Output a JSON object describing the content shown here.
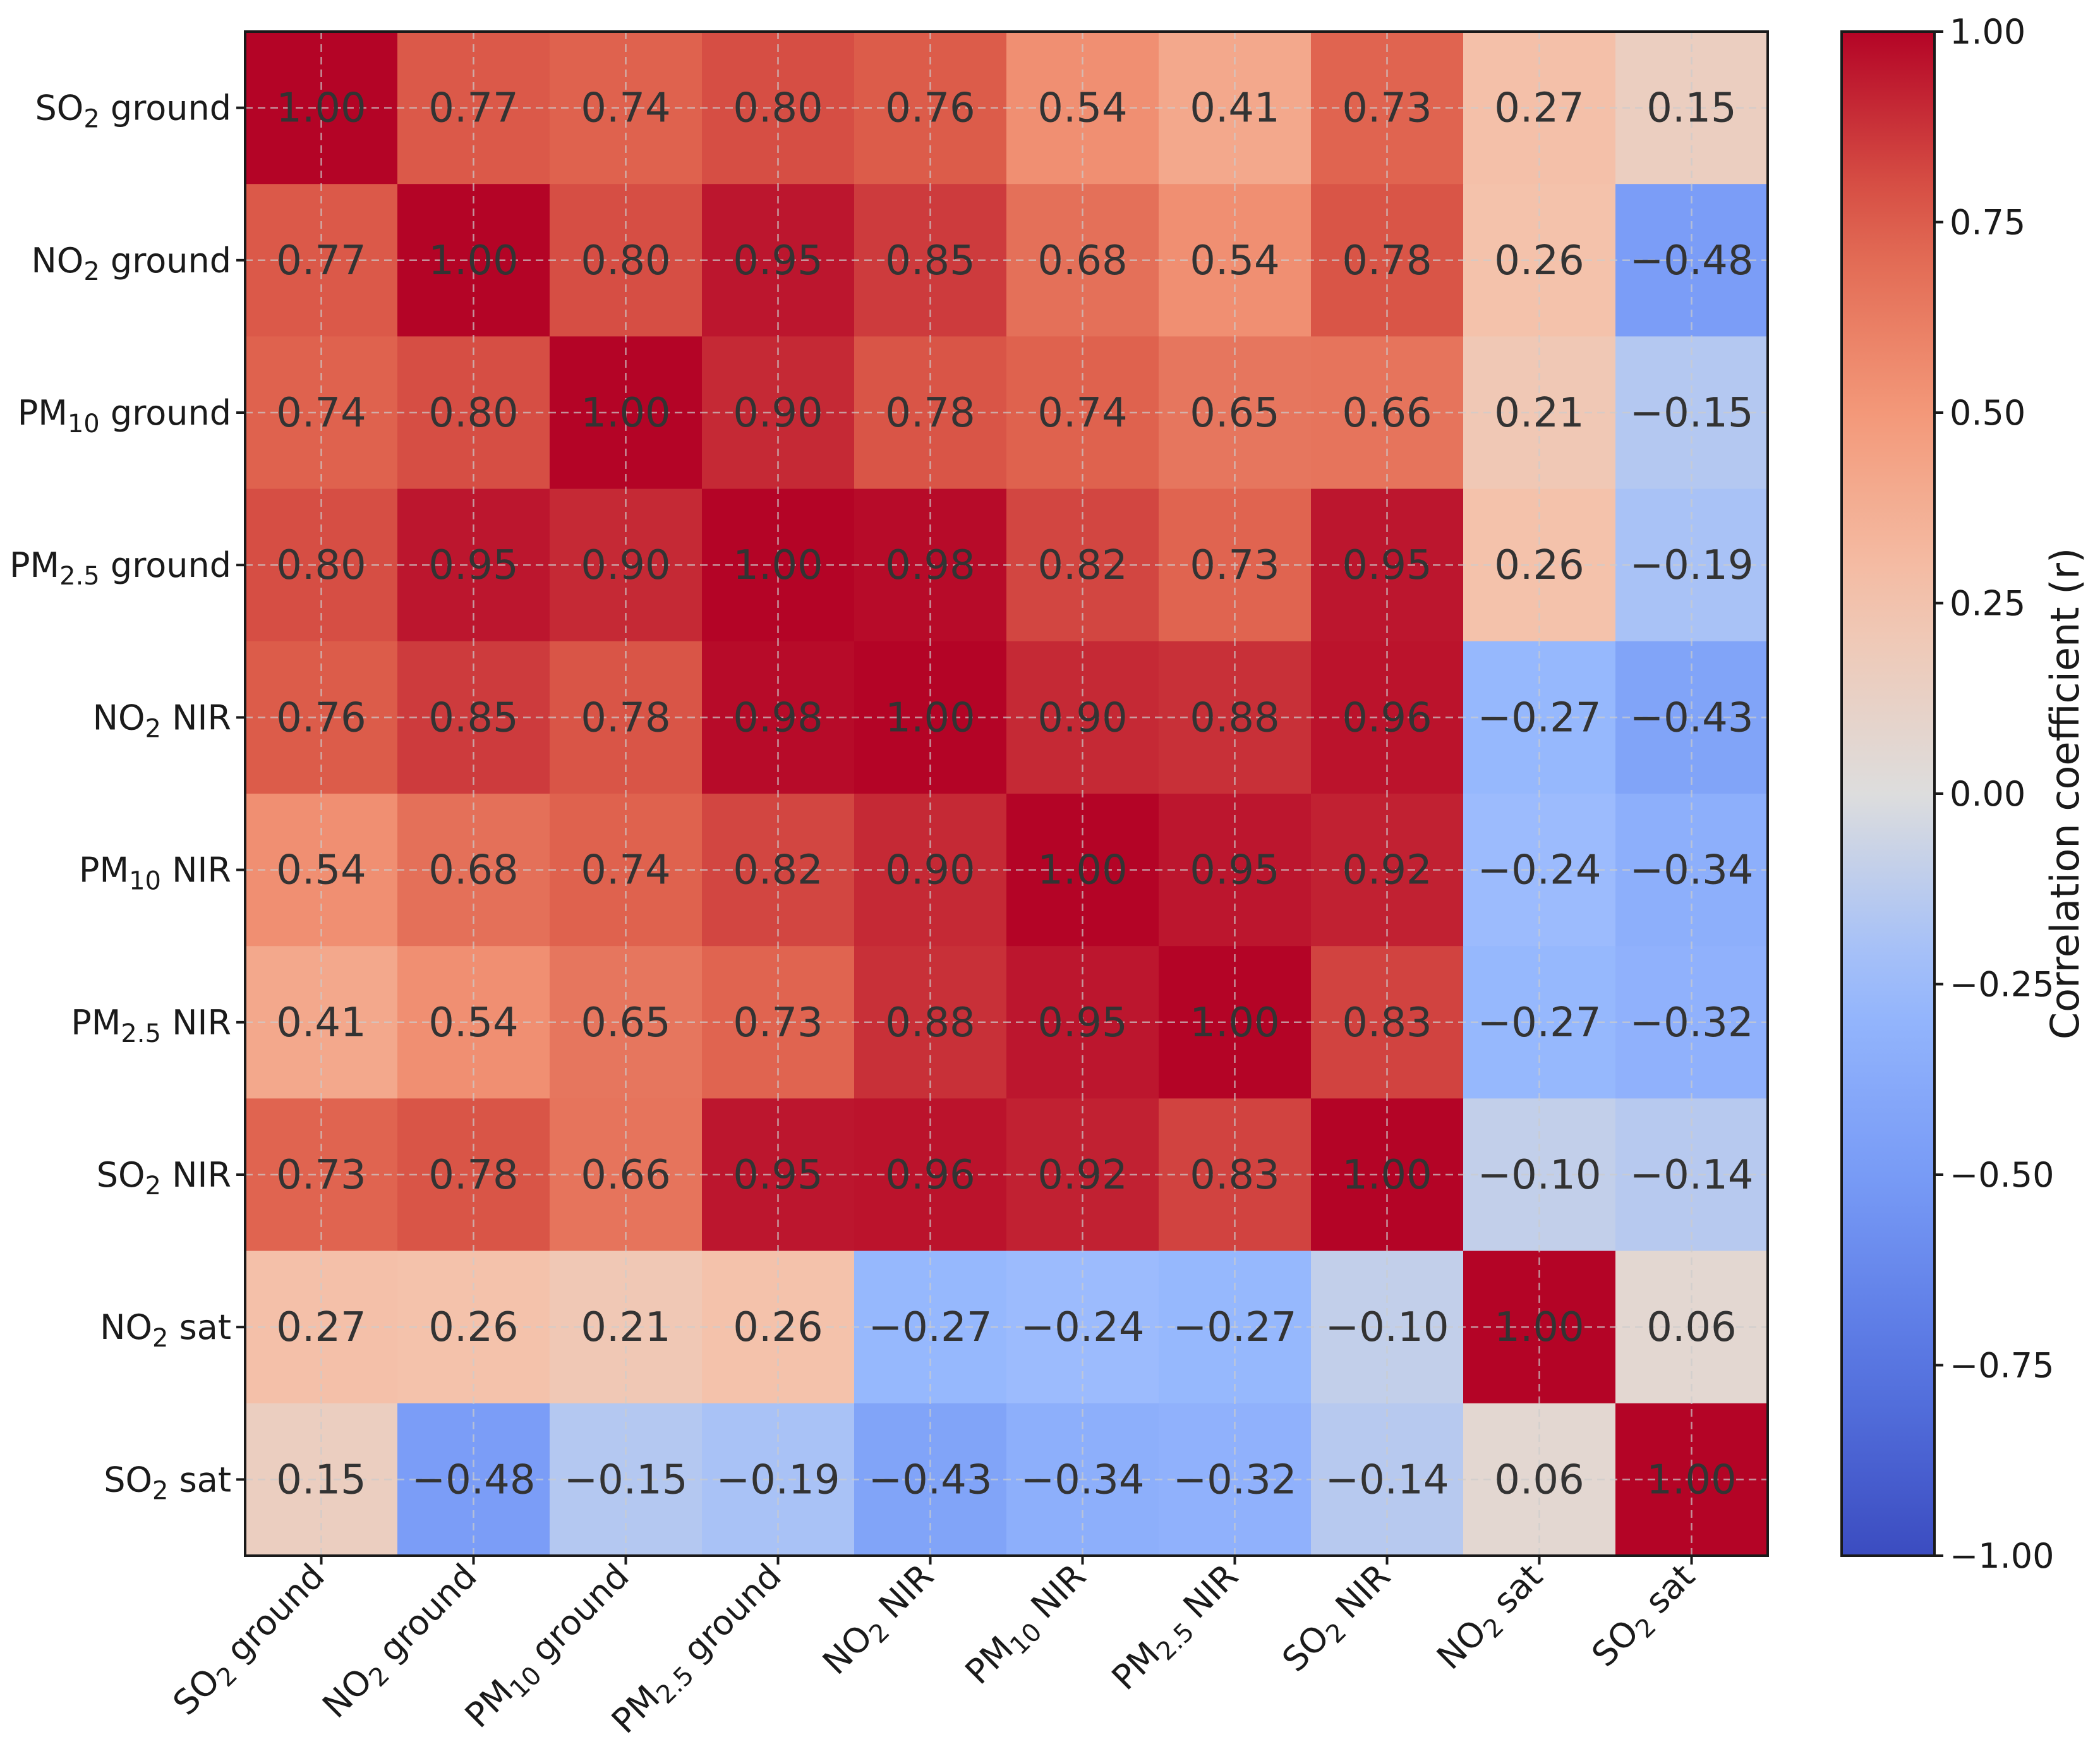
{
  "chart_data": {
    "type": "heatmap",
    "title": "",
    "row_labels": [
      {
        "base": "SO",
        "sub": "2",
        "rest": " ground"
      },
      {
        "base": "NO",
        "sub": "2",
        "rest": " ground"
      },
      {
        "base": "PM",
        "sub": "10",
        "rest": " ground"
      },
      {
        "base": "PM",
        "sub": "2.5",
        "rest": " ground"
      },
      {
        "base": "NO",
        "sub": "2",
        "rest": " NIR"
      },
      {
        "base": "PM",
        "sub": "10",
        "rest": " NIR"
      },
      {
        "base": "PM",
        "sub": "2.5",
        "rest": " NIR"
      },
      {
        "base": "SO",
        "sub": "2",
        "rest": " NIR"
      },
      {
        "base": "NO",
        "sub": "2",
        "rest": " sat"
      },
      {
        "base": "SO",
        "sub": "2",
        "rest": " sat"
      }
    ],
    "col_labels": [
      {
        "base": "SO",
        "sub": "2",
        "rest": " ground"
      },
      {
        "base": "NO",
        "sub": "2",
        "rest": " ground"
      },
      {
        "base": "PM",
        "sub": "10",
        "rest": " ground"
      },
      {
        "base": "PM",
        "sub": "2.5",
        "rest": " ground"
      },
      {
        "base": "NO",
        "sub": "2",
        "rest": " NIR"
      },
      {
        "base": "PM",
        "sub": "10",
        "rest": " NIR"
      },
      {
        "base": "PM",
        "sub": "2.5",
        "rest": " NIR"
      },
      {
        "base": "SO",
        "sub": "2",
        "rest": " NIR"
      },
      {
        "base": "NO",
        "sub": "2",
        "rest": " sat"
      },
      {
        "base": "SO",
        "sub": "2",
        "rest": " sat"
      }
    ],
    "values": [
      [
        1.0,
        0.77,
        0.74,
        0.8,
        0.76,
        0.54,
        0.41,
        0.73,
        0.27,
        0.15
      ],
      [
        0.77,
        1.0,
        0.8,
        0.95,
        0.85,
        0.68,
        0.54,
        0.78,
        0.26,
        -0.48
      ],
      [
        0.74,
        0.8,
        1.0,
        0.9,
        0.78,
        0.74,
        0.65,
        0.66,
        0.21,
        -0.15
      ],
      [
        0.8,
        0.95,
        0.9,
        1.0,
        0.98,
        0.82,
        0.73,
        0.95,
        0.26,
        -0.19
      ],
      [
        0.76,
        0.85,
        0.78,
        0.98,
        1.0,
        0.9,
        0.88,
        0.96,
        -0.27,
        -0.43
      ],
      [
        0.54,
        0.68,
        0.74,
        0.82,
        0.9,
        1.0,
        0.95,
        0.92,
        -0.24,
        -0.34
      ],
      [
        0.41,
        0.54,
        0.65,
        0.73,
        0.88,
        0.95,
        1.0,
        0.83,
        -0.27,
        -0.32
      ],
      [
        0.73,
        0.78,
        0.66,
        0.95,
        0.96,
        0.92,
        0.83,
        1.0,
        -0.1,
        -0.14
      ],
      [
        0.27,
        0.26,
        0.21,
        0.26,
        -0.27,
        -0.24,
        -0.27,
        -0.1,
        1.0,
        0.06
      ],
      [
        0.15,
        -0.48,
        -0.15,
        -0.19,
        -0.43,
        -0.34,
        -0.32,
        -0.14,
        0.06,
        1.0
      ]
    ],
    "value_format": "2 decimals, minus sign as −",
    "colormap": "coolwarm",
    "vmin": -1.0,
    "vmax": 1.0,
    "colorbar": {
      "label": "Correlation coefficient (r)",
      "ticks": [
        1.0,
        0.75,
        0.5,
        0.25,
        0.0,
        -0.25,
        -0.5,
        -0.75,
        -1.0
      ],
      "tick_labels": [
        "1.00",
        "0.75",
        "0.50",
        "0.25",
        "0.00",
        "−0.25",
        "−0.50",
        "−0.75",
        "−1.00"
      ]
    },
    "grid": true
  }
}
